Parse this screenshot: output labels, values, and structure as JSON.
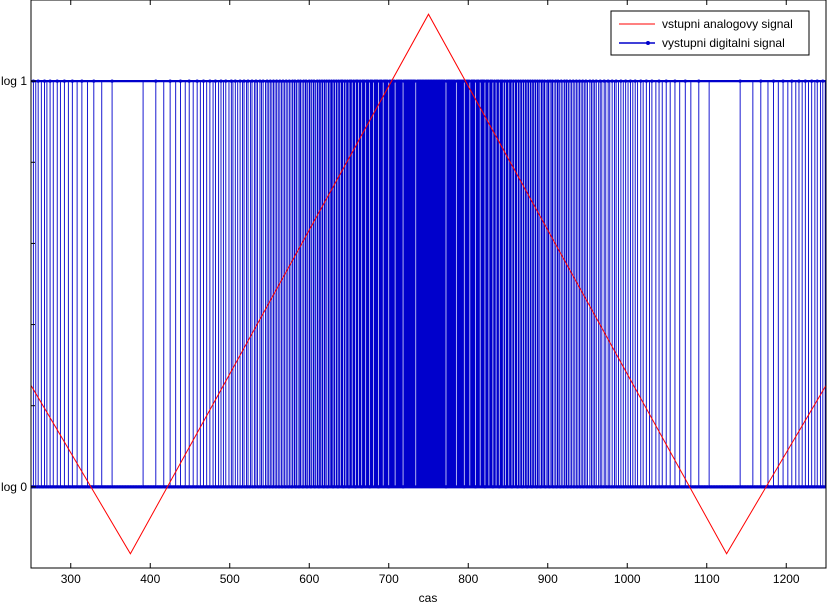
{
  "chart_data": {
    "type": "line",
    "xlabel": "cas",
    "ylabel": "",
    "xlim": [
      250,
      1250
    ],
    "ylim": [
      -0.2,
      1.2
    ],
    "x_ticks": [
      300,
      400,
      500,
      600,
      700,
      800,
      900,
      1000,
      1100,
      1200
    ],
    "y_ticks": [
      {
        "value": 0,
        "label": "log 0"
      },
      {
        "value": 1,
        "label": "log 1"
      }
    ],
    "grid": false,
    "legend_position": "top-right",
    "series": [
      {
        "name": "vstupni analogovy signal",
        "type": "line",
        "color": "#ff0000",
        "x": [
          250,
          375,
          750,
          1125,
          1250
        ],
        "y": [
          0.25,
          -0.165,
          1.165,
          -0.165,
          0.25
        ]
      },
      {
        "name": "vystupni digitalni signal",
        "type": "stem",
        "color": "#0000cc",
        "marker": "dot",
        "x_start": 250,
        "x_end": 1250,
        "x_step": 1,
        "levels": [
          0,
          1
        ],
        "pwm_period": 30
      }
    ]
  }
}
